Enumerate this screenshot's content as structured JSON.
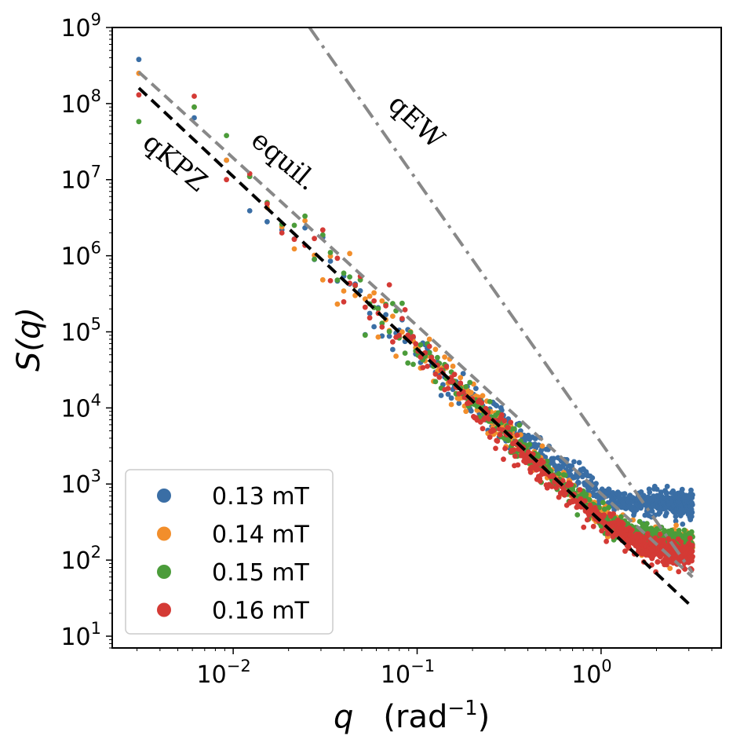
{
  "chart_data": {
    "type": "scatter",
    "title": "",
    "xlabel": {
      "main": "q",
      "unit_prefix": "(rad",
      "unit_exp": "−1",
      "unit_suffix": ")"
    },
    "ylabel": {
      "main": "S(q)"
    },
    "xscale": "log",
    "yscale": "log",
    "xlim": [
      0.0022,
      4.5
    ],
    "ylim": [
      7,
      1000000000
    ],
    "x_ticks": [
      {
        "value": 0.01,
        "base": "10",
        "exp": "−2"
      },
      {
        "value": 0.1,
        "base": "10",
        "exp": "−1"
      },
      {
        "value": 1,
        "base": "10",
        "exp": "0"
      }
    ],
    "y_ticks": [
      {
        "value": 10,
        "base": "10",
        "exp": "1"
      },
      {
        "value": 100,
        "base": "10",
        "exp": "2"
      },
      {
        "value": 1000,
        "base": "10",
        "exp": "3"
      },
      {
        "value": 10000,
        "base": "10",
        "exp": "4"
      },
      {
        "value": 100000,
        "base": "10",
        "exp": "5"
      },
      {
        "value": 1000000,
        "base": "10",
        "exp": "6"
      },
      {
        "value": 10000000,
        "base": "10",
        "exp": "7"
      },
      {
        "value": 100000000,
        "base": "10",
        "exp": "8"
      },
      {
        "value": 1000000000,
        "base": "10",
        "exp": "9"
      }
    ],
    "legend_position": "lower-left",
    "series": [
      {
        "name": "0.13 mT",
        "color": "#3a6ea5",
        "plateau": 550,
        "low_q_points": [
          [
            0.00307,
            380000000
          ],
          [
            0.00614,
            65000000
          ],
          [
            0.0092,
            18000000
          ],
          [
            0.0123,
            3900000
          ],
          [
            0.0153,
            2800000
          ],
          [
            0.0184,
            2200000
          ]
        ]
      },
      {
        "name": "0.14 mT",
        "color": "#f28e2b",
        "plateau": 150,
        "low_q_points": [
          [
            0.00307,
            250000000
          ],
          [
            0.00614,
            90000000
          ],
          [
            0.0092,
            18000000
          ],
          [
            0.0123,
            11000000
          ],
          [
            0.0153,
            4300000
          ],
          [
            0.0184,
            2400000
          ]
        ]
      },
      {
        "name": "0.15 mT",
        "color": "#4b9c3a",
        "plateau": 160,
        "low_q_points": [
          [
            0.00307,
            58000000
          ],
          [
            0.00614,
            90000000
          ],
          [
            0.0092,
            38000000
          ],
          [
            0.0123,
            11000000
          ],
          [
            0.0153,
            5000000
          ],
          [
            0.0184,
            2600000
          ]
        ]
      },
      {
        "name": "0.16 mT",
        "color": "#d43a35",
        "plateau": 110,
        "low_q_points": [
          [
            0.00307,
            130000000
          ],
          [
            0.00614,
            125000000
          ],
          [
            0.0092,
            10000000
          ],
          [
            0.0123,
            12000000
          ],
          [
            0.0153,
            4800000
          ],
          [
            0.0184,
            2000000
          ]
        ]
      }
    ],
    "reference_lines": [
      {
        "name": "qKPZ",
        "label": "qKPZ",
        "style": "dashed",
        "color": "#000000",
        "x": [
          0.00307,
          3.14
        ],
        "y": [
          160000000,
          24
        ]
      },
      {
        "name": "equil.",
        "label": "equil.",
        "style": "dashed",
        "color": "#888888",
        "x": [
          0.00307,
          3.14
        ],
        "y": [
          260000000,
          60
        ]
      },
      {
        "name": "qEW",
        "label": "qEW",
        "style": "dashdot",
        "color": "#888888",
        "x": [
          0.026,
          3.14
        ],
        "y": [
          1000000000,
          68
        ]
      }
    ]
  }
}
